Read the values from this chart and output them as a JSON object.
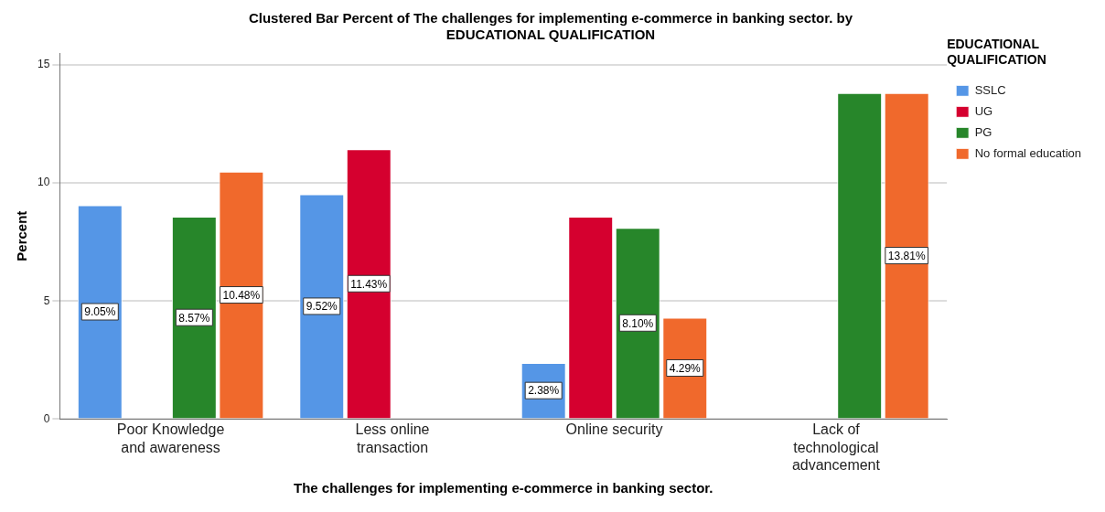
{
  "chart_data": {
    "type": "bar",
    "title": "Clustered Bar Percent of The challenges for implementing e-commerce in banking sector. by EDUCATIONAL QUALIFICATION",
    "xlabel": "The challenges for implementing e-commerce in banking sector.",
    "ylabel": "Percent",
    "legend_title": "EDUCATIONAL QUALIFICATION",
    "categories": [
      "Poor Knowledge and awareness",
      "Less online transaction",
      "Online security",
      "Lack of technological advancement"
    ],
    "series": [
      {
        "name": "SSLC",
        "color": "#5596e6",
        "values": [
          9.05,
          9.52,
          2.38,
          null
        ],
        "value_labels": [
          "9.05%",
          "9.52%",
          "2.38%",
          null
        ]
      },
      {
        "name": "UG",
        "color": "#d5002f",
        "values": [
          null,
          11.43,
          8.57,
          null
        ],
        "value_labels": [
          null,
          "11.43%",
          null,
          null
        ]
      },
      {
        "name": "PG",
        "color": "#27862a",
        "values": [
          8.57,
          null,
          8.1,
          13.81
        ],
        "value_labels": [
          "8.57%",
          null,
          "8.10%",
          null
        ]
      },
      {
        "name": "No formal education",
        "color": "#f0692c",
        "values": [
          10.48,
          null,
          4.29,
          13.81
        ],
        "value_labels": [
          "10.48%",
          null,
          "4.29%",
          "13.81%"
        ]
      }
    ],
    "ylim": [
      0,
      15.5
    ],
    "yticks": [
      0,
      5,
      10,
      15
    ],
    "grid": "y",
    "legend": "top right"
  }
}
